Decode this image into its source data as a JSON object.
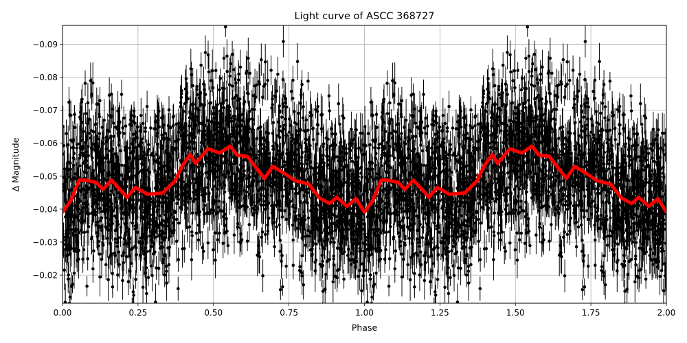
{
  "chart_data": {
    "type": "scatter",
    "title": "Light curve of ASCC 368727",
    "xlabel": "Phase",
    "ylabel": "Δ Magnitude",
    "xlim": [
      0.0,
      2.0
    ],
    "ylim": [
      -0.0115,
      -0.0957
    ],
    "y_inverted": true,
    "grid": true,
    "legend": null,
    "x_ticks": [
      "0.00",
      "0.25",
      "0.50",
      "0.75",
      "1.00",
      "1.25",
      "1.50",
      "1.75",
      "2.00"
    ],
    "x_tick_values": [
      0.0,
      0.25,
      0.5,
      0.75,
      1.0,
      1.25,
      1.5,
      1.75,
      2.0
    ],
    "y_ticks": [
      "−0.09",
      "−0.08",
      "−0.07",
      "−0.06",
      "−0.05",
      "−0.04",
      "−0.03",
      "−0.02"
    ],
    "y_tick_values": [
      -0.09,
      -0.08,
      -0.07,
      -0.06,
      -0.05,
      -0.04,
      -0.03,
      -0.02
    ],
    "series": [
      {
        "name": "observations",
        "style": "black points with vertical error bars",
        "color": "#000000",
        "description": "Dense phase-folded photometry (repeated over two cycles) spanning roughly -0.095 to -0.012 mag, centered near -0.05"
      },
      {
        "name": "binned mean",
        "style": "thick line",
        "color": "#ff0000",
        "period_repeats": true,
        "x": [
          0.0,
          0.027,
          0.055,
          0.077,
          0.112,
          0.134,
          0.162,
          0.214,
          0.241,
          0.282,
          0.332,
          0.373,
          0.396,
          0.423,
          0.441,
          0.482,
          0.521,
          0.555,
          0.578,
          0.612,
          0.669,
          0.696,
          0.737,
          0.771,
          0.816,
          0.851,
          0.885,
          0.908,
          0.942,
          0.972,
          1.0
        ],
        "values": [
          -0.0391,
          -0.0425,
          -0.0488,
          -0.0488,
          -0.0481,
          -0.046,
          -0.0488,
          -0.0436,
          -0.0466,
          -0.0445,
          -0.0449,
          -0.0486,
          -0.053,
          -0.0566,
          -0.0539,
          -0.0583,
          -0.057,
          -0.0591,
          -0.0564,
          -0.056,
          -0.0493,
          -0.053,
          -0.0507,
          -0.0486,
          -0.0476,
          -0.0434,
          -0.0417,
          -0.0436,
          -0.0409,
          -0.0432,
          -0.0391
        ]
      }
    ]
  }
}
